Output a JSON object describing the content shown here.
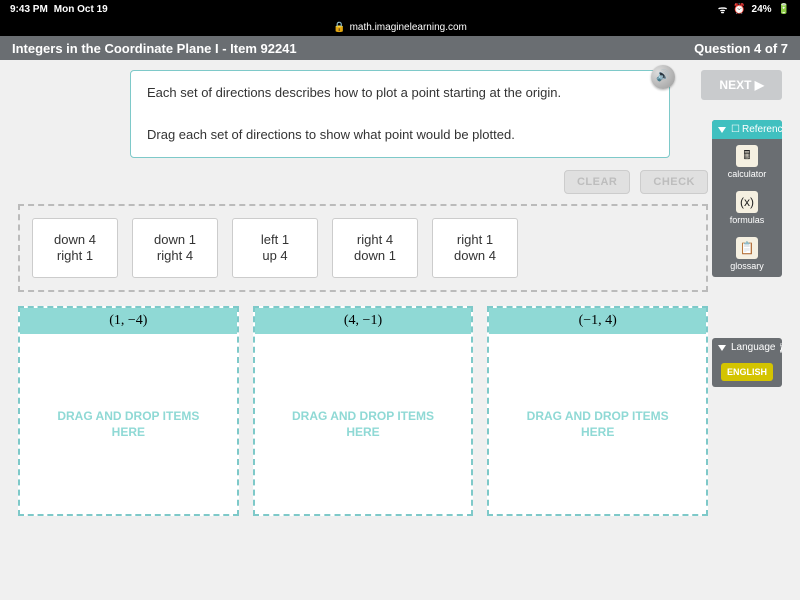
{
  "status": {
    "time": "9:43 PM",
    "date": "Mon Oct 19",
    "battery": "24%"
  },
  "url": "math.imaginelearning.com",
  "title": "Integers in the Coordinate Plane I - Item 92241",
  "question_label": "Question 4 of 7",
  "next_label": "NEXT ▶",
  "prompt": {
    "line1": "Each set of directions describes how to plot a point starting at the origin.",
    "line2": "Drag each set of directions to show what point would be plotted."
  },
  "controls": {
    "clear": "CLEAR",
    "check": "CHECK"
  },
  "cards": [
    {
      "l1": "down 4",
      "l2": "right 1"
    },
    {
      "l1": "down 1",
      "l2": "right 4"
    },
    {
      "l1": "left 1",
      "l2": "up 4"
    },
    {
      "l1": "right 4",
      "l2": "down 1"
    },
    {
      "l1": "right 1",
      "l2": "down 4"
    }
  ],
  "drops": [
    {
      "label": "(1, −4)"
    },
    {
      "label": "(4, −1)"
    },
    {
      "label": "(−1, 4)"
    }
  ],
  "drop_placeholder": "DRAG AND DROP ITEMS HERE",
  "reference": {
    "title": "Reference",
    "items": [
      {
        "icon": "🖩",
        "label": "calculator"
      },
      {
        "icon": "(x)",
        "label": "formulas"
      },
      {
        "icon": "📋",
        "label": "glossary"
      }
    ]
  },
  "language": {
    "title": "Language",
    "btn": "ENGLISH"
  }
}
